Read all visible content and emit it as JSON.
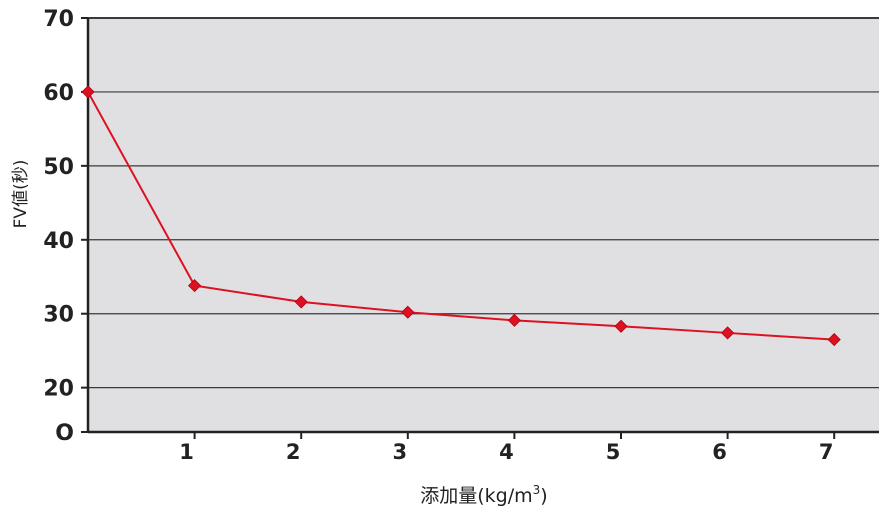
{
  "chart_data": {
    "type": "line",
    "x_label": "添加量(kg/m",
    "x_label_sup": "3",
    "x_label_close": ")",
    "y_label": "FV値(秒)",
    "x": [
      0,
      1,
      2,
      3,
      4,
      5,
      6,
      7
    ],
    "x_tick_labels": [
      "1",
      "2",
      "3",
      "4",
      "5",
      "6",
      "7"
    ],
    "y_tick_labels": [
      "O",
      "20",
      "30",
      "40",
      "50",
      "60",
      "70"
    ],
    "series": [
      {
        "values": [
          60,
          33.8,
          31.6,
          30.2,
          29.1,
          28.3,
          27.4,
          26.5
        ]
      }
    ],
    "grid": true,
    "colors": {
      "series": "#dd1122",
      "plot_background": "#e0e0e2",
      "gridline": "#3a3a3a",
      "axis": "#222222"
    }
  }
}
